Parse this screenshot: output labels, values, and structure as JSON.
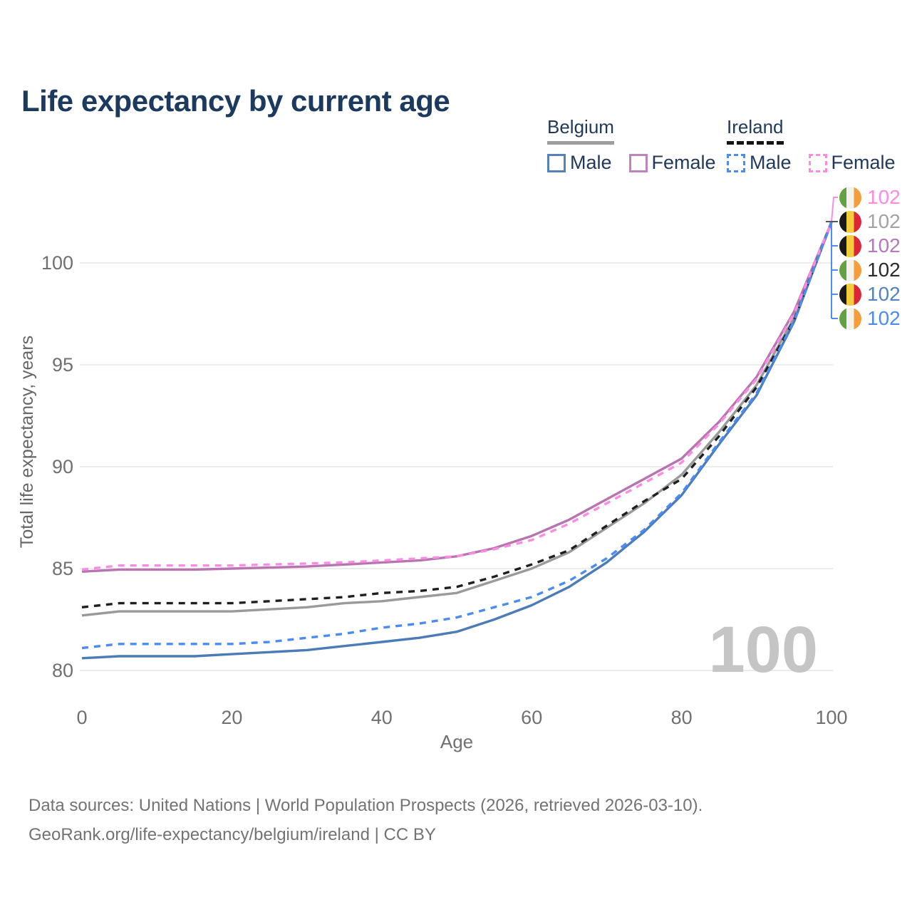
{
  "title": "Life expectancy by current age",
  "legend": {
    "groups": [
      {
        "label": "Belgium",
        "line_style": "solid",
        "underline_color": "#9e9e9e",
        "items": [
          {
            "label": "Male",
            "color": "#5581ba",
            "dashed": false
          },
          {
            "label": "Female",
            "color": "#c183bb",
            "dashed": false
          }
        ]
      },
      {
        "label": "Ireland",
        "line_style": "dashed",
        "underline_color": "#151515",
        "items": [
          {
            "label": "Male",
            "color": "#4a8cf4",
            "dashed": true
          },
          {
            "label": "Female",
            "color": "#fb8ce2",
            "dashed": true
          }
        ]
      }
    ]
  },
  "chart_data": {
    "type": "line",
    "title": "Life expectancy by current age",
    "xlabel": "Age",
    "ylabel": "Total life expectancy, years",
    "xticks": [
      0,
      20,
      40,
      60,
      80,
      100
    ],
    "yticks": [
      80,
      85,
      90,
      95,
      100
    ],
    "xlim": [
      0,
      100
    ],
    "ylim": [
      78,
      103
    ],
    "grid": "horizontal-only",
    "x": [
      0,
      5,
      10,
      15,
      20,
      25,
      30,
      35,
      40,
      45,
      50,
      55,
      60,
      65,
      70,
      75,
      80,
      85,
      90,
      95,
      100
    ],
    "series": [
      {
        "name": "Belgium (both sexes)",
        "country": "Belgium",
        "sex": "both",
        "color": "#9a9a9a",
        "dashed": false,
        "values": [
          82.7,
          82.9,
          82.9,
          82.9,
          82.9,
          83.0,
          83.1,
          83.3,
          83.4,
          83.6,
          83.8,
          84.4,
          85.0,
          85.8,
          87.0,
          88.2,
          89.6,
          91.7,
          94.0,
          97.3,
          102
        ]
      },
      {
        "name": "Belgium Female",
        "country": "Belgium",
        "sex": "female",
        "color": "#b874b0",
        "dashed": false,
        "values": [
          84.85,
          84.95,
          84.95,
          84.95,
          85.0,
          85.05,
          85.1,
          85.2,
          85.3,
          85.4,
          85.6,
          86.0,
          86.6,
          87.4,
          88.4,
          89.4,
          90.4,
          92.2,
          94.4,
          97.6,
          102
        ]
      },
      {
        "name": "Belgium Male",
        "country": "Belgium",
        "sex": "male",
        "color": "#4b7cb8",
        "dashed": false,
        "values": [
          80.6,
          80.7,
          80.7,
          80.7,
          80.8,
          80.9,
          81.0,
          81.2,
          81.4,
          81.6,
          81.9,
          82.5,
          83.2,
          84.1,
          85.3,
          86.8,
          88.6,
          91.1,
          93.5,
          97.1,
          102
        ]
      },
      {
        "name": "Ireland (both sexes)",
        "country": "Ireland",
        "sex": "both",
        "color": "#1f1f1f",
        "dashed": true,
        "values": [
          83.1,
          83.3,
          83.3,
          83.3,
          83.3,
          83.4,
          83.5,
          83.6,
          83.8,
          83.9,
          84.1,
          84.6,
          85.2,
          85.9,
          87.1,
          88.3,
          89.4,
          91.5,
          93.9,
          97.2,
          102
        ]
      },
      {
        "name": "Ireland Female",
        "country": "Ireland",
        "sex": "female",
        "color": "#fb8ce2",
        "dashed": true,
        "values": [
          84.95,
          85.15,
          85.15,
          85.15,
          85.15,
          85.2,
          85.25,
          85.3,
          85.4,
          85.5,
          85.6,
          85.95,
          86.4,
          87.2,
          88.2,
          89.2,
          90.2,
          92.1,
          94.3,
          97.5,
          102
        ]
      },
      {
        "name": "Ireland Male",
        "country": "Ireland",
        "sex": "male",
        "color": "#4a8cf4",
        "dashed": true,
        "values": [
          81.1,
          81.3,
          81.3,
          81.3,
          81.3,
          81.4,
          81.6,
          81.8,
          82.1,
          82.3,
          82.6,
          83.1,
          83.6,
          84.4,
          85.5,
          86.9,
          88.7,
          91.2,
          93.6,
          97.15,
          102
        ]
      }
    ]
  },
  "end_labels": [
    {
      "country": "Ireland",
      "flag": "ie",
      "value": "102",
      "color": "#fd8ae1"
    },
    {
      "country": "Belgium",
      "flag": "be",
      "value": "102",
      "color": "#a3a3a3"
    },
    {
      "country": "Belgium",
      "flag": "be",
      "value": "102",
      "color": "#b379bb"
    },
    {
      "country": "Ireland",
      "flag": "ie",
      "value": "102",
      "color": "#2b2b2b"
    },
    {
      "country": "Belgium",
      "flag": "be",
      "value": "102",
      "color": "#5583bb"
    },
    {
      "country": "Ireland",
      "flag": "ie",
      "value": "102",
      "color": "#4b8cf2"
    }
  ],
  "watermark": "100",
  "footer": {
    "line1": "Data sources: United Nations | World Population Prospects (2026, retrieved 2026-03-10).",
    "line2": "GeoRank.org/life-expectancy/belgium/ireland | CC BY"
  }
}
